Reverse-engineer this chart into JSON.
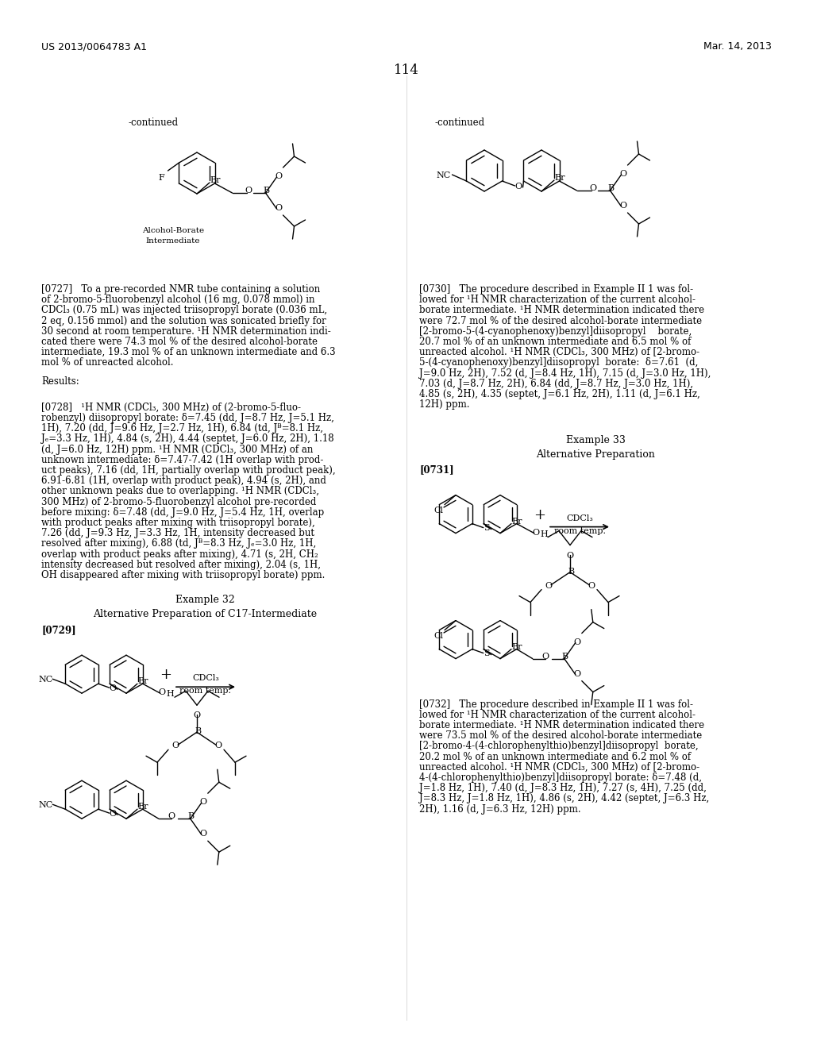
{
  "header_left": "US 2013/0064783 A1",
  "header_right": "Mar. 14, 2013",
  "page_number": "114",
  "bg_color": "#ffffff"
}
